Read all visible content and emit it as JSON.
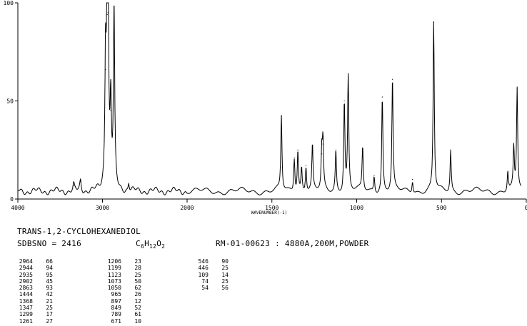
{
  "chart_data": {
    "type": "line",
    "title": "",
    "xlabel": "WAVENUMBER(-1)",
    "ylabel": "",
    "xlim": [
      4000,
      0
    ],
    "ylim": [
      0,
      100
    ],
    "x_ticks": [
      "4000",
      "3000",
      "2000",
      "1500",
      "1000",
      "500",
      "0"
    ],
    "y_ticks": [
      "0",
      "50",
      "100"
    ],
    "baseline": 4,
    "peaks": [
      {
        "x": 3260,
        "y": 9
      },
      {
        "x": 3340,
        "y": 7
      },
      {
        "x": 2964,
        "y": 66
      },
      {
        "x": 2944,
        "y": 94
      },
      {
        "x": 2935,
        "y": 95
      },
      {
        "x": 2902,
        "y": 45
      },
      {
        "x": 2863,
        "y": 93
      },
      {
        "x": 2690,
        "y": 8
      },
      {
        "x": 1444,
        "y": 42
      },
      {
        "x": 1368,
        "y": 21
      },
      {
        "x": 1347,
        "y": 25
      },
      {
        "x": 1325,
        "y": 16
      },
      {
        "x": 1299,
        "y": 17
      },
      {
        "x": 1261,
        "y": 27
      },
      {
        "x": 1206,
        "y": 23
      },
      {
        "x": 1199,
        "y": 28
      },
      {
        "x": 1123,
        "y": 25
      },
      {
        "x": 1073,
        "y": 50
      },
      {
        "x": 1050,
        "y": 62
      },
      {
        "x": 965,
        "y": 26
      },
      {
        "x": 897,
        "y": 12
      },
      {
        "x": 849,
        "y": 52
      },
      {
        "x": 789,
        "y": 61
      },
      {
        "x": 671,
        "y": 10
      },
      {
        "x": 546,
        "y": 90
      },
      {
        "x": 446,
        "y": 25
      },
      {
        "x": 109,
        "y": 14
      },
      {
        "x": 74,
        "y": 25
      },
      {
        "x": 54,
        "y": 56
      }
    ]
  },
  "info": {
    "compound_name": "TRANS-1,2-CYCLOHEXANEDIOL",
    "sdbs_no": "SDBSNO = 2416",
    "formula_parts": [
      "C",
      "6",
      "H",
      "12",
      "O",
      "2"
    ],
    "source": "RM-01-00623 : 4880A,200M,POWDER"
  },
  "peak_tables": [
    [
      [
        "2964",
        "66"
      ],
      [
        "2944",
        "94"
      ],
      [
        "2935",
        "95"
      ],
      [
        "2902",
        "45"
      ],
      [
        "2863",
        "93"
      ],
      [
        "1444",
        "42"
      ],
      [
        "1368",
        "21"
      ],
      [
        "1347",
        "25"
      ],
      [
        "1299",
        "17"
      ],
      [
        "1261",
        "27"
      ]
    ],
    [
      [
        "1206",
        "23"
      ],
      [
        "1199",
        "28"
      ],
      [
        "1123",
        "25"
      ],
      [
        "1073",
        "50"
      ],
      [
        "1050",
        "62"
      ],
      [
        "965",
        "26"
      ],
      [
        "897",
        "12"
      ],
      [
        "849",
        "52"
      ],
      [
        "789",
        "61"
      ],
      [
        "671",
        "10"
      ]
    ],
    [
      [
        "546",
        "90"
      ],
      [
        "446",
        "25"
      ],
      [
        "109",
        "14"
      ],
      [
        "74",
        "25"
      ],
      [
        "54",
        "56"
      ]
    ]
  ]
}
